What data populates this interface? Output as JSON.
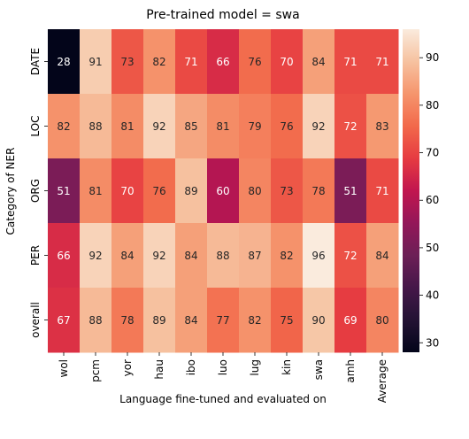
{
  "chart_data": {
    "type": "heatmap",
    "title": "Pre-trained model = swa",
    "xlabel": "Language fine-tuned and evaluated on",
    "ylabel": "Category of NER",
    "x_categories": [
      "wol",
      "pcm",
      "yor",
      "hau",
      "ibo",
      "luo",
      "lug",
      "kin",
      "swa",
      "amh",
      "Average"
    ],
    "y_categories": [
      "DATE",
      "LOC",
      "ORG",
      "PER",
      "overall"
    ],
    "values": [
      [
        28,
        91,
        73,
        82,
        71,
        66,
        76,
        70,
        84,
        71,
        71
      ],
      [
        82,
        88,
        81,
        92,
        85,
        81,
        79,
        76,
        92,
        72,
        83
      ],
      [
        51,
        81,
        70,
        76,
        89,
        60,
        80,
        73,
        78,
        51,
        71
      ],
      [
        66,
        92,
        84,
        92,
        84,
        88,
        87,
        82,
        96,
        72,
        84
      ],
      [
        67,
        88,
        78,
        89,
        84,
        77,
        82,
        75,
        90,
        69,
        80
      ]
    ],
    "colorbar": {
      "min": 28,
      "max": 96,
      "ticks": [
        "30",
        "40",
        "50",
        "60",
        "70",
        "80",
        "90"
      ],
      "colormap": "rocket"
    }
  }
}
